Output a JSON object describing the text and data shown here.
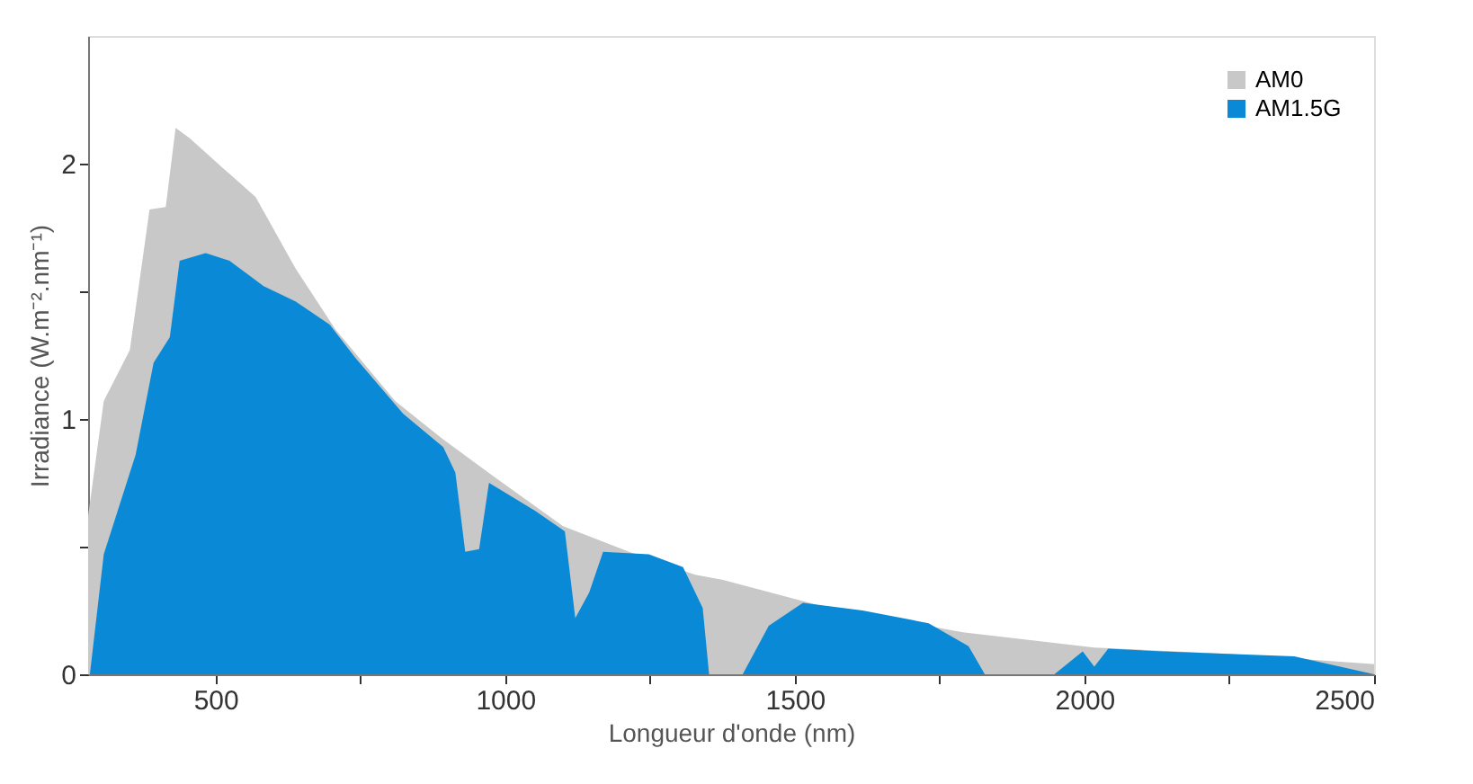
{
  "chart_data": {
    "type": "area",
    "xlabel": "Longueur d'onde (nm)",
    "ylabel": "Irradiance (W.m⁻².nm⁻¹)",
    "xlim": [
      280,
      2500
    ],
    "ylim": [
      0,
      2.5
    ],
    "xticks": [
      500,
      {
        "value": 750,
        "label": null
      },
      1000,
      {
        "value": 1250,
        "label": null
      },
      1500,
      {
        "value": 1750,
        "label": null
      },
      2000,
      {
        "value": 2250,
        "label": null
      },
      2500
    ],
    "yticks": [
      0,
      {
        "value": 0.5,
        "label": null
      },
      1,
      {
        "value": 1.5,
        "label": null
      },
      2
    ],
    "grid": false,
    "legend": "top right",
    "series": [
      {
        "name": "AM0",
        "color": "#c8c8c8",
        "x": [
          280,
          307,
          352,
          386,
          414,
          431,
          455,
          514,
          569,
          638,
          707,
          810,
          893,
          983,
          1100,
          1214,
          1328,
          1376,
          1559,
          1790,
          2017,
          2248,
          2500
        ],
        "values": [
          0.62,
          1.07,
          1.27,
          1.82,
          1.83,
          2.14,
          2.1,
          1.98,
          1.87,
          1.59,
          1.35,
          1.07,
          0.92,
          0.77,
          0.58,
          0.48,
          0.39,
          0.37,
          0.26,
          0.165,
          0.105,
          0.08,
          0.04
        ]
      },
      {
        "name": "AM1.5G",
        "color": "#0a8ad6",
        "x": [
          283,
          307,
          362,
          393,
          421,
          438,
          483,
          524,
          583,
          638,
          697,
          741,
          824,
          893,
          914,
          931,
          955,
          972,
          1052,
          1103,
          1121,
          1145,
          1169,
          1248,
          1307,
          1341,
          1352,
          1410,
          1455,
          1514,
          1617,
          1731,
          1800,
          1828,
          1948,
          1997,
          2017,
          2041,
          2134,
          2362,
          2500
        ],
        "values": [
          0,
          0.47,
          0.86,
          1.22,
          1.32,
          1.62,
          1.65,
          1.62,
          1.52,
          1.46,
          1.37,
          1.24,
          1.02,
          0.89,
          0.79,
          0.48,
          0.49,
          0.75,
          0.64,
          0.56,
          0.22,
          0.32,
          0.48,
          0.47,
          0.42,
          0.26,
          0,
          0,
          0.19,
          0.28,
          0.25,
          0.2,
          0.11,
          0,
          0,
          0.09,
          0.03,
          0.1,
          0.09,
          0.07,
          0
        ]
      }
    ]
  }
}
